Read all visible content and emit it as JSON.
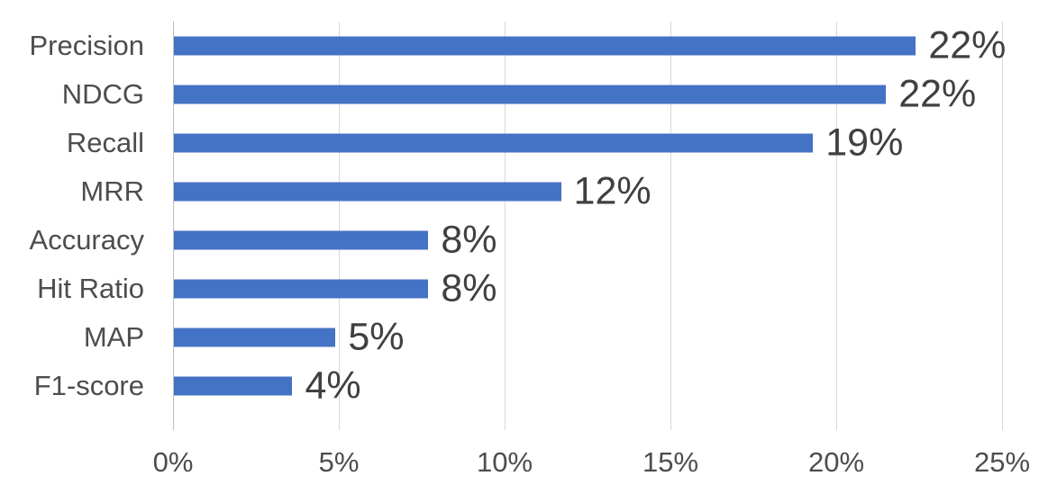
{
  "chart_data": {
    "type": "bar",
    "orientation": "horizontal",
    "title": "",
    "xlabel": "",
    "ylabel": "",
    "categories": [
      "Precision",
      "NDCG",
      "Recall",
      "MRR",
      "Accuracy",
      "Hit Ratio",
      "MAP",
      "F1-score"
    ],
    "values": [
      22.4,
      21.5,
      19.3,
      11.7,
      7.7,
      7.7,
      4.9,
      3.6
    ],
    "value_labels": [
      "22%",
      "22%",
      "19%",
      "12%",
      "8%",
      "8%",
      "5%",
      "4%"
    ],
    "x_ticks": [
      "0%",
      "5%",
      "10%",
      "15%",
      "20%",
      "25%"
    ],
    "xlim": [
      0,
      25
    ],
    "grid": "vertical-gridlines-on",
    "legend": "none",
    "bar_color": "#4472c4",
    "gridline_color": "#d9d9d9",
    "axis_line_color": "#bfbfbf",
    "axis_text_color": "#4d4d4d",
    "data_label_color": "#404040"
  }
}
